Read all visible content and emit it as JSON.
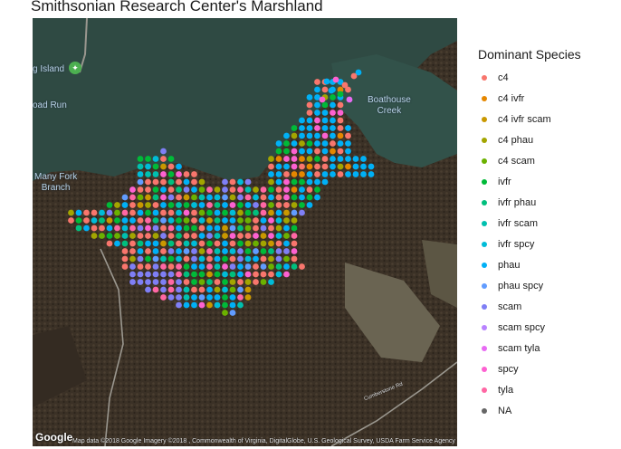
{
  "title": "Smithsonian Research Center's Marshland",
  "map": {
    "place_labels": [
      {
        "text": "Many Fork\nBranch",
        "name": "label-many-fork-branch"
      },
      {
        "text": "Boathouse\nCreek",
        "name": "label-boathouse-creek"
      },
      {
        "text": "g Island",
        "name": "label-island"
      },
      {
        "text": "oad Run",
        "name": "label-road-run"
      }
    ],
    "road_label": "Cumberstone Rd",
    "google_logo": "Google",
    "attribution": "Map data ©2018 Google  Imagery ©2018 , Commonwealth of Virginia, DigitalGlobe, U.S. Geological Survey, USDA Farm Service Agency"
  },
  "legend": {
    "title": "Dominant Species",
    "items": [
      {
        "label": "c4",
        "color": "#F8766D"
      },
      {
        "label": "c4 ivfr",
        "color": "#E58700"
      },
      {
        "label": "c4 ivfr scam",
        "color": "#C99800"
      },
      {
        "label": "c4 phau",
        "color": "#A3A500"
      },
      {
        "label": "c4 scam",
        "color": "#6BB100"
      },
      {
        "label": "ivfr",
        "color": "#00BA38"
      },
      {
        "label": "ivfr phau",
        "color": "#00BF7D"
      },
      {
        "label": "ivfr scam",
        "color": "#00C0AF"
      },
      {
        "label": "ivfr spcy",
        "color": "#00BCD8"
      },
      {
        "label": "phau",
        "color": "#00B0F6"
      },
      {
        "label": "phau spcy",
        "color": "#619CFF"
      },
      {
        "label": "scam",
        "color": "#7F7FF5"
      },
      {
        "label": "scam spcy",
        "color": "#B983FF"
      },
      {
        "label": "scam tyla",
        "color": "#E76BF3"
      },
      {
        "label": "spcy",
        "color": "#FD61D1"
      },
      {
        "label": "tyla",
        "color": "#FF67A4"
      },
      {
        "label": "NA",
        "color": "#666666"
      }
    ]
  }
}
